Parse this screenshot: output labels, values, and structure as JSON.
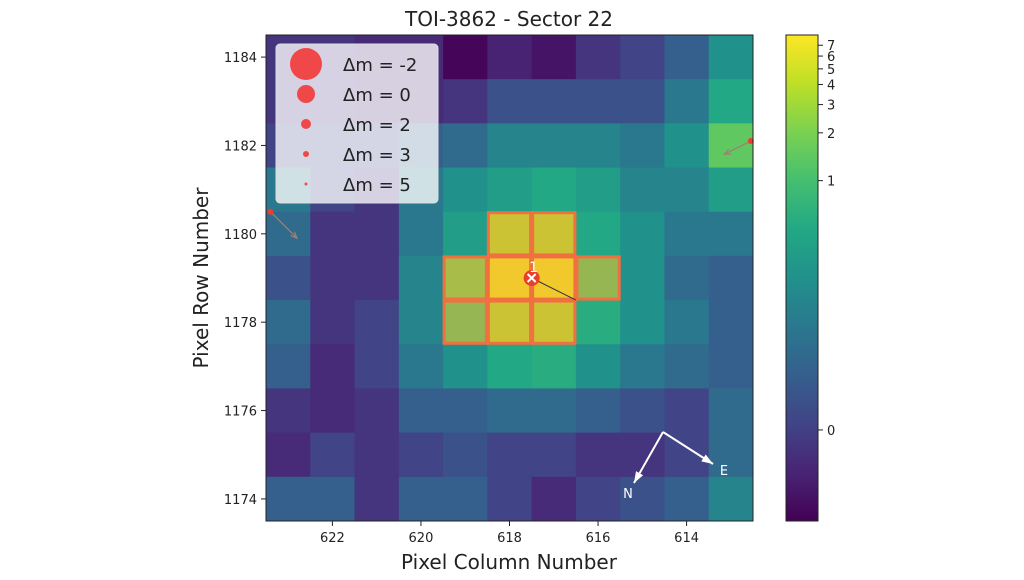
{
  "chart_data": {
    "type": "heatmap",
    "title": "TOI-3862 - Sector 22",
    "xlabel": "Pixel Column Number",
    "ylabel": "Pixel Row Number",
    "colormap": "viridis",
    "color_scale": "log-like (stretched)",
    "columns": [
      623,
      622,
      621,
      620,
      619,
      618,
      617,
      616,
      615,
      614,
      613
    ],
    "rows": [
      1184,
      1183,
      1182,
      1181,
      1180,
      1179,
      1178,
      1177,
      1176,
      1175,
      1174
    ],
    "x_ticks": [
      "622",
      "620",
      "618",
      "616",
      "614"
    ],
    "x_tick_values": [
      622,
      620,
      618,
      616,
      614
    ],
    "y_ticks": [
      "1184",
      "1182",
      "1180",
      "1178",
      "1176",
      "1174"
    ],
    "y_tick_values": [
      1184,
      1182,
      1180,
      1178,
      1176,
      1174
    ],
    "xlim": [
      623.5,
      612.5
    ],
    "ylim": [
      1173.5,
      1184.5
    ],
    "values": [
      [
        -0.007,
        -0.007,
        -0.011,
        -0.011,
        -0.021,
        -0.014,
        -0.018,
        -0.007,
        0.003,
        0.035,
        0.229
      ],
      [
        -0.007,
        -0.007,
        -0.011,
        -0.011,
        -0.007,
        0.016,
        0.016,
        0.016,
        0.016,
        0.1,
        0.486
      ],
      [
        0.003,
        0.003,
        0.003,
        0.035,
        0.062,
        0.153,
        0.153,
        0.153,
        0.1,
        0.229,
        1.42
      ],
      [
        0.1,
        0.003,
        -0.007,
        0.1,
        0.229,
        0.336,
        0.486,
        0.336,
        0.153,
        0.153,
        0.336
      ],
      [
        0.062,
        -0.007,
        -0.007,
        0.1,
        0.336,
        3.53,
        3.53,
        0.486,
        0.229,
        0.1,
        0.1
      ],
      [
        0.016,
        -0.007,
        -0.007,
        0.153,
        2.02,
        6.58,
        6.58,
        1.42,
        0.229,
        0.062,
        0.035
      ],
      [
        0.062,
        -0.007,
        0.003,
        0.153,
        1.42,
        3.53,
        3.53,
        0.56,
        0.229,
        0.1,
        0.035
      ],
      [
        0.035,
        -0.011,
        0.003,
        0.1,
        0.229,
        0.486,
        0.56,
        0.229,
        0.1,
        0.062,
        0.035
      ],
      [
        -0.007,
        -0.011,
        -0.007,
        0.035,
        0.035,
        0.062,
        0.062,
        0.035,
        0.016,
        0.003,
        0.062
      ],
      [
        -0.011,
        0.003,
        -0.007,
        0.003,
        0.016,
        0.003,
        0.003,
        -0.007,
        -0.007,
        0.003,
        0.062
      ],
      [
        0.035,
        0.035,
        -0.007,
        0.035,
        0.035,
        0.003,
        -0.011,
        0.003,
        0.016,
        0.035,
        0.153
      ]
    ],
    "colorbar": {
      "ticks": [
        "0",
        "1",
        "2",
        "3",
        "4",
        "5",
        "6",
        "7"
      ],
      "tick_values": [
        0,
        1,
        2,
        3,
        4,
        5,
        6,
        7
      ],
      "vmin": -0.022,
      "vmax": 8.1
    },
    "aperture_pixels": [
      [
        618,
        1180
      ],
      [
        617,
        1180
      ],
      [
        619,
        1179
      ],
      [
        618,
        1179
      ],
      [
        617,
        1179
      ],
      [
        616,
        1179
      ],
      [
        619,
        1178
      ],
      [
        618,
        1178
      ],
      [
        617,
        1178
      ]
    ],
    "aperture_color": "#f07040",
    "target": {
      "column": 617.5,
      "row": 1179.0,
      "label": "1",
      "color": "#e8402a"
    },
    "target_motion_end": {
      "column": 616.5,
      "row": 1178.5
    },
    "nearby_stars": [
      {
        "column": 623.4,
        "row": 1180.5,
        "arrow_to": {
          "column": 622.8,
          "row": 1179.9
        }
      },
      {
        "column": 612.55,
        "row": 1182.1,
        "arrow_to": {
          "column": 613.15,
          "row": 1181.8
        }
      }
    ],
    "compass": {
      "north_label": "N",
      "east_label": "E"
    },
    "legend": {
      "placement": "top-left",
      "marker_color": "#f04848",
      "entries": [
        {
          "label": "Δm =  -2"
        },
        {
          "label": "Δm =  0"
        },
        {
          "label": "Δm =  2"
        },
        {
          "label": "Δm =  3"
        },
        {
          "label": "Δm =  5"
        }
      ]
    }
  }
}
